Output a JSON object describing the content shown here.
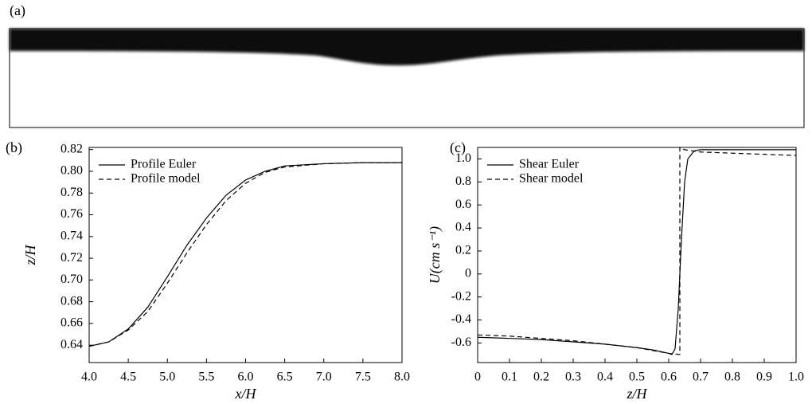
{
  "panel_a": {
    "label": "(a)"
  },
  "chart_data": [
    {
      "type": "line",
      "label": "(b)",
      "xlabel": "x/H",
      "ylabel": "z/H",
      "xlim": [
        4.0,
        8.0
      ],
      "xticks": [
        {
          "value": 4.0,
          "label": "4.0"
        },
        4.5,
        {
          "value": 5.0,
          "label": "5.0"
        },
        5.5,
        {
          "value": 6.0,
          "label": "6.0"
        },
        6.5,
        {
          "value": 7.0,
          "label": "7.0"
        },
        7.5,
        {
          "value": 8.0,
          "label": "8.0"
        }
      ],
      "ylim": [
        0.624,
        0.822
      ],
      "yticks": [
        0.64,
        0.66,
        0.68,
        {
          "value": 0.7,
          "label": "0.70"
        },
        0.72,
        0.74,
        0.76,
        0.78,
        {
          "value": 0.8,
          "label": "0.80"
        },
        0.82
      ],
      "legend": "upper left",
      "x": [
        4.0,
        4.25,
        4.5,
        4.75,
        5.0,
        5.25,
        5.5,
        5.75,
        6.0,
        6.25,
        6.5,
        7.0,
        7.5,
        8.0
      ],
      "series": [
        {
          "name": "Profile Euler",
          "color": "#000000",
          "dash": "solid",
          "values": [
            0.639,
            0.643,
            0.655,
            0.675,
            0.703,
            0.732,
            0.757,
            0.778,
            0.792,
            0.8,
            0.805,
            0.807,
            0.808,
            0.808
          ]
        },
        {
          "name": "Profile model",
          "color": "#000000",
          "dash": "dashed",
          "values": [
            0.639,
            0.643,
            0.654,
            0.671,
            0.697,
            0.725,
            0.751,
            0.773,
            0.789,
            0.799,
            0.804,
            0.807,
            0.808,
            0.808
          ]
        }
      ]
    },
    {
      "type": "line",
      "label": "(c)",
      "xlabel": "z/H",
      "ylabel": "U(cm s⁻¹)",
      "xlim": [
        0,
        1.0
      ],
      "xticks": [
        0,
        0.1,
        0.2,
        0.3,
        0.4,
        0.5,
        0.6,
        0.7,
        0.8,
        0.9,
        {
          "value": 1.0,
          "label": "1.0"
        }
      ],
      "ylim": [
        -0.77,
        1.1
      ],
      "yticks": [
        -0.6,
        -0.4,
        -0.2,
        0,
        0.2,
        0.4,
        0.6,
        0.8,
        {
          "value": 1.0,
          "label": "1.0"
        }
      ],
      "legend": "upper left",
      "series": [
        {
          "name": "Shear Euler",
          "color": "#000000",
          "dash": "solid",
          "x": [
            0,
            0.1,
            0.2,
            0.3,
            0.4,
            0.5,
            0.55,
            0.6,
            0.61,
            0.62,
            0.63,
            0.64,
            0.65,
            0.66,
            0.68,
            0.7,
            0.8,
            0.9,
            1.0
          ],
          "values": [
            -0.55,
            -0.56,
            -0.57,
            -0.59,
            -0.61,
            -0.64,
            -0.66,
            -0.69,
            -0.7,
            -0.65,
            -0.3,
            0.3,
            0.8,
            1.0,
            1.07,
            1.08,
            1.08,
            1.08,
            1.08
          ]
        },
        {
          "name": "Shear model",
          "color": "#000000",
          "dash": "dashed",
          "x": [
            0,
            0.1,
            0.2,
            0.3,
            0.4,
            0.5,
            0.6,
            0.635,
            0.635,
            0.65,
            0.7,
            0.8,
            0.9,
            1.0
          ],
          "values": [
            -0.53,
            -0.54,
            -0.56,
            -0.58,
            -0.61,
            -0.64,
            -0.69,
            -0.7,
            1.1,
            1.08,
            1.06,
            1.05,
            1.04,
            1.03
          ]
        }
      ]
    }
  ]
}
